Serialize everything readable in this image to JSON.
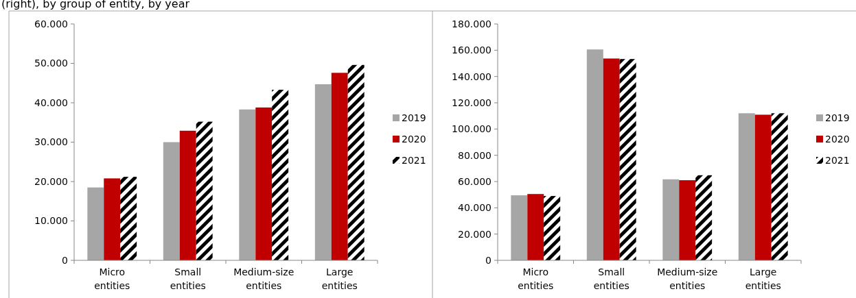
{
  "chart_data": [
    {
      "type": "bar",
      "title": "(right), by group of entity, by year",
      "categories": [
        "Micro entities",
        "Small entities",
        "Medium-size entities",
        "Large entities"
      ],
      "series": [
        {
          "name": "2019",
          "color": "#a6a6a6",
          "values": [
            18500,
            30000,
            38300,
            44700
          ]
        },
        {
          "name": "2020",
          "color": "#c00000",
          "values": [
            20800,
            32900,
            38800,
            47600
          ]
        },
        {
          "name": "2021",
          "color": "#000000",
          "values": [
            21200,
            35200,
            43300,
            49600
          ]
        }
      ],
      "ylim": [
        0,
        60000
      ],
      "yticks": [
        {
          "value": 0,
          "label": "0"
        },
        {
          "value": 10000,
          "label": "10.000"
        },
        {
          "value": 20000,
          "label": "20.000"
        },
        {
          "value": 30000,
          "label": "30.000"
        },
        {
          "value": 40000,
          "label": "40.000"
        },
        {
          "value": 50000,
          "label": "50.000"
        },
        {
          "value": 60000,
          "label": "60.000"
        }
      ],
      "grid": false,
      "legend": "right"
    },
    {
      "type": "bar",
      "categories": [
        "Micro entities",
        "Small entities",
        "Medium-size entities",
        "Large entities"
      ],
      "series": [
        {
          "name": "2019",
          "color": "#a6a6a6",
          "values": [
            49500,
            160600,
            61700,
            112000
          ]
        },
        {
          "name": "2020",
          "color": "#c00000",
          "values": [
            50500,
            153700,
            61000,
            110900
          ]
        },
        {
          "name": "2021",
          "color": "#000000",
          "values": [
            49000,
            153300,
            64800,
            112000
          ]
        }
      ],
      "ylim": [
        0,
        180000
      ],
      "yticks": [
        {
          "value": 0,
          "label": "0"
        },
        {
          "value": 20000,
          "label": "20.000"
        },
        {
          "value": 40000,
          "label": "40.000"
        },
        {
          "value": 60000,
          "label": "60.000"
        },
        {
          "value": 80000,
          "label": "80.000"
        },
        {
          "value": 100000,
          "label": "100.000"
        },
        {
          "value": 120000,
          "label": "120.000"
        },
        {
          "value": 140000,
          "label": "140.000"
        },
        {
          "value": 160000,
          "label": "160.000"
        },
        {
          "value": 180000,
          "label": "180.000"
        }
      ],
      "grid": false,
      "legend": "right"
    }
  ]
}
